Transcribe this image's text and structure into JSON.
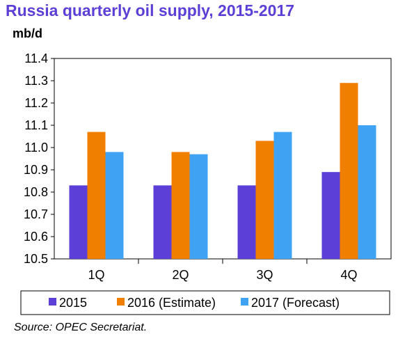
{
  "chart_data": {
    "type": "bar",
    "title": "Russia quarterly oil supply, 2015-2017",
    "ylabel": "mb/d",
    "xlabel": "",
    "categories": [
      "1Q",
      "2Q",
      "3Q",
      "4Q"
    ],
    "ylim": [
      10.5,
      11.4
    ],
    "yticks": [
      "10.5",
      "10.6",
      "10.7",
      "10.8",
      "10.9",
      "11.0",
      "11.1",
      "11.2",
      "11.3",
      "11.4"
    ],
    "series": [
      {
        "name": "2015",
        "color": "#5b3fd6",
        "values": [
          10.83,
          10.83,
          10.83,
          10.89
        ]
      },
      {
        "name": "2016 (Estimate)",
        "color": "#f07f00",
        "values": [
          11.07,
          10.98,
          11.03,
          11.29
        ]
      },
      {
        "name": "2017 (Forecast)",
        "color": "#3fa2f2",
        "values": [
          10.98,
          10.97,
          11.07,
          11.1
        ]
      }
    ],
    "grid": false,
    "legend": "bottom"
  },
  "source": "Source: OPEC Secretariat."
}
